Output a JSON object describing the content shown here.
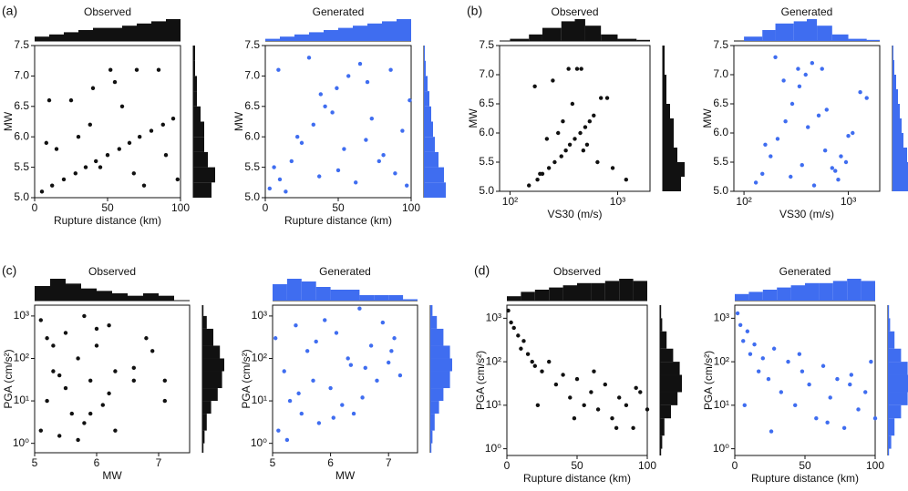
{
  "chart_data": [
    {
      "type": "scatter",
      "panel_label": "(a)",
      "title": "Observed",
      "xlabel": "Rupture distance (km)",
      "ylabel": "MW",
      "color": "#111111",
      "xlim": [
        0,
        100
      ],
      "xticks": [
        0,
        50,
        100
      ],
      "ylim": [
        5,
        7.5
      ],
      "yticks": [
        {
          "value": 5,
          "label": "5.0"
        },
        5.5,
        {
          "value": 6,
          "label": "6.0"
        },
        6.5,
        {
          "value": 7,
          "label": "7.0"
        },
        7.5
      ],
      "x": [
        5,
        12,
        20,
        28,
        35,
        42,
        50,
        58,
        65,
        72,
        80,
        88,
        95,
        10,
        25,
        40,
        55,
        70,
        85,
        15,
        45,
        75,
        30,
        60,
        90,
        8,
        38,
        68,
        98,
        52
      ],
      "y": [
        5.1,
        5.2,
        5.3,
        5.4,
        5.5,
        5.6,
        5.7,
        5.8,
        5.9,
        6.0,
        6.1,
        6.2,
        6.3,
        6.6,
        6.6,
        6.8,
        6.9,
        7.1,
        7.1,
        5.8,
        5.5,
        5.2,
        6.0,
        6.5,
        5.7,
        5.9,
        6.2,
        5.4,
        5.3,
        7.1
      ],
      "x_hist": {
        "bins": [
          0,
          10,
          20,
          30,
          40,
          50,
          60,
          70,
          80,
          90,
          100
        ],
        "counts": [
          2,
          3,
          4,
          5,
          6,
          6,
          7,
          8,
          9,
          10
        ]
      },
      "y_hist": {
        "bins": [
          5,
          5.25,
          5.5,
          5.75,
          6,
          6.25,
          6.5,
          6.75,
          7,
          7.25,
          7.5
        ],
        "counts": [
          10,
          12,
          8,
          6,
          6,
          4,
          2,
          2,
          1,
          1
        ]
      }
    },
    {
      "type": "scatter",
      "title": "Generated",
      "xlabel": "Rupture distance (km)",
      "ylabel": "MW",
      "color": "#3f6df0",
      "xlim": [
        0,
        100
      ],
      "xticks": [
        0,
        50,
        100
      ],
      "ylim": [
        5,
        7.5
      ],
      "yticks": [
        {
          "value": 5,
          "label": "5.0"
        },
        5.5,
        {
          "value": 6,
          "label": "6.0"
        },
        6.5,
        {
          "value": 7,
          "label": "7.0"
        },
        7.5
      ],
      "x": [
        3,
        10,
        18,
        25,
        33,
        41,
        49,
        57,
        65,
        73,
        81,
        89,
        97,
        6,
        22,
        38,
        54,
        70,
        86,
        14,
        46,
        78,
        30,
        62,
        94,
        9,
        37,
        69,
        99,
        50
      ],
      "y": [
        5.15,
        5.3,
        5.6,
        5.9,
        6.2,
        6.5,
        6.8,
        7.0,
        7.2,
        6.3,
        5.7,
        5.4,
        5.2,
        5.5,
        6.0,
        6.7,
        5.8,
        6.9,
        7.1,
        5.1,
        6.4,
        5.6,
        7.3,
        5.25,
        6.1,
        7.1,
        5.35,
        5.95,
        6.6,
        5.45
      ],
      "x_hist": {
        "bins": [
          0,
          10,
          20,
          30,
          40,
          50,
          60,
          70,
          80,
          90,
          100
        ],
        "counts": [
          1,
          2,
          3,
          4,
          5,
          6,
          7,
          8,
          9,
          10
        ]
      },
      "y_hist": {
        "bins": [
          5,
          5.25,
          5.5,
          5.75,
          6,
          6.25,
          6.5,
          6.75,
          7,
          7.25,
          7.5
        ],
        "counts": [
          12,
          11,
          8,
          6,
          5,
          4,
          3,
          2,
          1,
          0.5
        ]
      }
    },
    {
      "type": "scatter",
      "panel_label": "(b)",
      "title": "Observed",
      "xlabel": "VS30 (m/s)",
      "ylabel": "MW",
      "color": "#111111",
      "xlog": true,
      "xlim": [
        80,
        2000
      ],
      "xticks": [
        {
          "value": 100,
          "label": "10²"
        },
        {
          "value": 1000,
          "label": "10³"
        }
      ],
      "ylim": [
        5,
        7.5
      ],
      "yticks": [
        {
          "value": 5,
          "label": "5.0"
        },
        5.5,
        {
          "value": 6,
          "label": "6.0"
        },
        6.5,
        {
          "value": 7,
          "label": "7.0"
        },
        7.5
      ],
      "x": [
        150,
        180,
        200,
        230,
        260,
        300,
        330,
        360,
        400,
        450,
        500,
        550,
        600,
        700,
        800,
        170,
        250,
        350,
        420,
        520,
        650,
        1200,
        280,
        380,
        480,
        220,
        310,
        900,
        190,
        460
      ],
      "y": [
        5.1,
        5.2,
        5.3,
        5.4,
        5.5,
        5.6,
        5.7,
        5.8,
        5.9,
        6.0,
        6.1,
        6.2,
        6.3,
        6.6,
        6.6,
        6.8,
        6.9,
        7.1,
        7.1,
        5.8,
        5.5,
        5.2,
        6.0,
        6.5,
        5.7,
        5.9,
        6.2,
        5.4,
        5.3,
        7.1
      ],
      "x_hist": {
        "bins": [
          100,
          150,
          200,
          300,
          400,
          500,
          700,
          1000,
          1500,
          2000
        ],
        "counts": [
          1,
          3,
          6,
          9,
          10,
          7,
          3,
          1,
          0.5
        ]
      },
      "y_hist": {
        "bins": [
          5,
          5.25,
          5.5,
          5.75,
          6,
          6.25,
          6.5,
          6.75,
          7,
          7.25,
          7.5
        ],
        "counts": [
          10,
          12,
          8,
          6,
          6,
          4,
          2,
          2,
          1,
          1
        ]
      }
    },
    {
      "type": "scatter",
      "title": "Generated",
      "xlabel": "VS30 (m/s)",
      "ylabel": "MW",
      "color": "#3f6df0",
      "xlog": true,
      "xlim": [
        80,
        2000
      ],
      "xticks": [
        {
          "value": 100,
          "label": "10²"
        },
        {
          "value": 1000,
          "label": "10³"
        }
      ],
      "ylim": [
        5,
        7.5
      ],
      "yticks": [
        {
          "value": 5,
          "label": "5.0"
        },
        5.5,
        {
          "value": 6,
          "label": "6.0"
        },
        6.5,
        {
          "value": 7,
          "label": "7.0"
        },
        7.5
      ],
      "x": [
        130,
        150,
        180,
        210,
        250,
        290,
        340,
        390,
        450,
        520,
        600,
        700,
        800,
        950,
        1100,
        1300,
        160,
        240,
        330,
        470,
        620,
        850,
        200,
        280,
        410,
        560,
        750,
        1000,
        1500,
        360
      ],
      "y": [
        5.15,
        5.3,
        5.6,
        5.9,
        6.2,
        6.5,
        6.8,
        7.0,
        7.2,
        6.3,
        5.7,
        5.4,
        5.2,
        5.5,
        6.0,
        6.7,
        5.8,
        6.9,
        7.1,
        5.1,
        6.4,
        5.6,
        7.3,
        5.25,
        6.1,
        7.1,
        5.35,
        5.95,
        6.6,
        5.45
      ],
      "x_hist": {
        "bins": [
          100,
          150,
          200,
          300,
          400,
          500,
          700,
          1000,
          1500,
          2000
        ],
        "counts": [
          2,
          5,
          8,
          9,
          10,
          7,
          3,
          1,
          0.5
        ]
      },
      "y_hist": {
        "bins": [
          5,
          5.25,
          5.5,
          5.75,
          6,
          6.25,
          6.5,
          6.75,
          7,
          7.25,
          7.5
        ],
        "counts": [
          12,
          11,
          8,
          6,
          5,
          4,
          3,
          2,
          1,
          0.5
        ]
      }
    },
    {
      "type": "scatter",
      "panel_label": "(c)",
      "title": "Observed",
      "xlabel": "MW",
      "ylabel": "PGA (cm/s²)",
      "color": "#111111",
      "ylog": true,
      "xlim": [
        5,
        7.5
      ],
      "xticks": [
        5,
        6,
        7
      ],
      "ylim": [
        0.6,
        1800
      ],
      "yticks": [
        {
          "value": 1,
          "label": "10⁰"
        },
        {
          "value": 10,
          "label": "10¹"
        },
        {
          "value": 100,
          "label": "10²"
        },
        {
          "value": 1000,
          "label": "10³"
        }
      ],
      "x": [
        5.1,
        5.2,
        5.2,
        5.3,
        5.4,
        5.5,
        5.5,
        5.6,
        5.7,
        5.8,
        5.8,
        5.9,
        6.0,
        6.1,
        6.2,
        6.2,
        6.3,
        6.6,
        6.6,
        6.8,
        6.9,
        7.1,
        7.1,
        5.1,
        5.4,
        5.7,
        6.0,
        6.3,
        5.3,
        5.9
      ],
      "y": [
        2,
        300,
        10,
        50,
        1.5,
        400,
        20,
        5,
        100,
        1000,
        3,
        30,
        200,
        8,
        15,
        600,
        2,
        60,
        30,
        300,
        150,
        30,
        10,
        800,
        40,
        1.2,
        500,
        50,
        200,
        5
      ],
      "x_hist": {
        "bins": [
          5,
          5.25,
          5.5,
          5.75,
          6,
          6.25,
          6.5,
          6.75,
          7,
          7.25,
          7.5
        ],
        "counts": [
          6,
          9,
          7,
          5,
          4,
          3,
          2,
          3,
          2,
          0
        ]
      },
      "y_hist": {
        "bins": [
          0.6,
          1,
          2,
          5,
          10,
          20,
          50,
          100,
          200,
          500,
          1000,
          1800
        ],
        "counts": [
          0.5,
          1,
          2,
          4,
          7,
          9,
          10,
          8,
          5,
          2,
          0.5
        ]
      }
    },
    {
      "type": "scatter",
      "title": "Generated",
      "xlabel": "MW",
      "ylabel": "PGA (cm/s²)",
      "color": "#3f6df0",
      "ylog": true,
      "xlim": [
        5,
        7.5
      ],
      "xticks": [
        5,
        6,
        7
      ],
      "ylim": [
        0.6,
        1800
      ],
      "yticks": [
        {
          "value": 1,
          "label": "10⁰"
        },
        {
          "value": 10,
          "label": "10¹"
        },
        {
          "value": 100,
          "label": "10²"
        },
        {
          "value": 1000,
          "label": "10³"
        }
      ],
      "x": [
        5.05,
        5.1,
        5.2,
        5.3,
        5.4,
        5.5,
        5.6,
        5.7,
        5.8,
        5.9,
        6.0,
        6.1,
        6.2,
        6.3,
        6.4,
        6.5,
        6.6,
        6.7,
        6.8,
        6.9,
        7.0,
        7.1,
        7.2,
        5.25,
        5.45,
        5.75,
        6.05,
        6.35,
        6.55,
        7.05
      ],
      "y": [
        300,
        2,
        50,
        10,
        600,
        5,
        150,
        30,
        3,
        800,
        20,
        400,
        8,
        100,
        5,
        1500,
        60,
        200,
        30,
        700,
        80,
        300,
        40,
        1.2,
        15,
        250,
        4,
        70,
        12,
        150
      ],
      "x_hist": {
        "bins": [
          5,
          5.25,
          5.5,
          5.75,
          6,
          6.25,
          6.5,
          6.75,
          7,
          7.25,
          7.5
        ],
        "counts": [
          6,
          8,
          7,
          5,
          4,
          4,
          2,
          2,
          2,
          0.5
        ]
      },
      "y_hist": {
        "bins": [
          0.6,
          1,
          2,
          5,
          10,
          20,
          50,
          100,
          200,
          500,
          1000,
          1800
        ],
        "counts": [
          0.5,
          1,
          2,
          4,
          6,
          9,
          10,
          9,
          6,
          3,
          1
        ]
      }
    },
    {
      "type": "scatter",
      "panel_label": "(d)",
      "title": "Observed",
      "xlabel": "Rupture distance (km)",
      "ylabel": "PGA (cm/s²)",
      "color": "#111111",
      "ylog": true,
      "xlim": [
        0,
        100
      ],
      "xticks": [
        0,
        50,
        100
      ],
      "ylim": [
        0.7,
        2000
      ],
      "yticks": [
        {
          "value": 1,
          "label": "10⁰"
        },
        {
          "value": 10,
          "label": "10¹"
        },
        {
          "value": 100,
          "label": "10²"
        },
        {
          "value": 1000,
          "label": "10³"
        }
      ],
      "x": [
        1,
        3,
        5,
        8,
        10,
        12,
        15,
        18,
        20,
        25,
        30,
        35,
        40,
        45,
        50,
        55,
        60,
        65,
        70,
        75,
        80,
        85,
        90,
        95,
        100,
        22,
        48,
        62,
        78,
        92
      ],
      "y": [
        1500,
        800,
        600,
        400,
        200,
        300,
        150,
        100,
        80,
        60,
        100,
        30,
        50,
        15,
        40,
        10,
        20,
        8,
        30,
        5,
        15,
        10,
        3,
        20,
        8,
        10,
        5,
        60,
        3,
        25
      ],
      "x_hist": {
        "bins": [
          0,
          10,
          20,
          30,
          40,
          50,
          60,
          70,
          80,
          90,
          100
        ],
        "counts": [
          2,
          4,
          5,
          6,
          7,
          8,
          8,
          9,
          10,
          9
        ]
      },
      "y_hist": {
        "bins": [
          0.7,
          1,
          2,
          5,
          10,
          20,
          50,
          100,
          200,
          500,
          1000,
          2000
        ],
        "counts": [
          0.5,
          1,
          2,
          5,
          8,
          10,
          9,
          6,
          3,
          1,
          0.5
        ]
      }
    },
    {
      "type": "scatter",
      "title": "Generated",
      "xlabel": "Rupture distance (km)",
      "ylabel": "PGA (cm/s²)",
      "color": "#3f6df0",
      "ylog": true,
      "xlim": [
        0,
        100
      ],
      "xticks": [
        0,
        50,
        100
      ],
      "ylim": [
        0.7,
        2000
      ],
      "yticks": [
        {
          "value": 1,
          "label": "10⁰"
        },
        {
          "value": 10,
          "label": "10¹"
        },
        {
          "value": 100,
          "label": "10²"
        },
        {
          "value": 1000,
          "label": "10³"
        }
      ],
      "x": [
        2,
        4,
        6,
        9,
        11,
        14,
        17,
        20,
        24,
        28,
        33,
        38,
        43,
        48,
        53,
        58,
        63,
        68,
        73,
        78,
        83,
        88,
        93,
        97,
        100,
        26,
        46,
        66,
        82,
        7
      ],
      "y": [
        1300,
        700,
        300,
        500,
        150,
        250,
        60,
        120,
        40,
        200,
        20,
        100,
        10,
        60,
        30,
        5,
        80,
        15,
        40,
        3,
        50,
        8,
        20,
        100,
        5,
        2.5,
        150,
        4,
        30,
        10
      ],
      "x_hist": {
        "bins": [
          0,
          10,
          20,
          30,
          40,
          50,
          60,
          70,
          80,
          90,
          100
        ],
        "counts": [
          3,
          4,
          5,
          6,
          7,
          8,
          8,
          9,
          10,
          9
        ]
      },
      "y_hist": {
        "bins": [
          0.7,
          1,
          2,
          5,
          10,
          20,
          50,
          100,
          200,
          500,
          1000,
          2000
        ],
        "counts": [
          0.5,
          1.5,
          3,
          6,
          9,
          10,
          9,
          6,
          3,
          1,
          0.5
        ]
      }
    }
  ]
}
